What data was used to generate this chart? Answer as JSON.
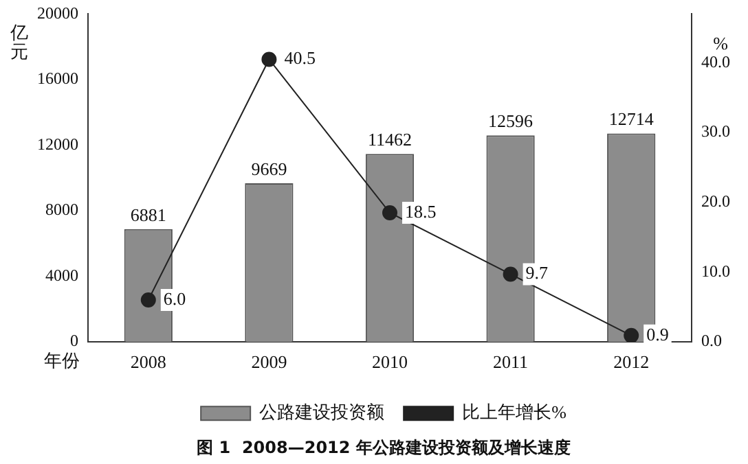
{
  "chart_data": {
    "type": "bar",
    "title": "图 1  2008—2012 年公路建设投资额及增长速度",
    "xlabel": "年份",
    "ylabel": "亿元",
    "y2label": "%",
    "categories": [
      "2008",
      "2009",
      "2010",
      "2011",
      "2012"
    ],
    "series": [
      {
        "name": "公路建设投资额",
        "color": "#8c8c8c",
        "values": [
          6881,
          9669,
          11462,
          12596,
          12714
        ]
      },
      {
        "name": "比上年增长%",
        "type": "line",
        "axis": "y2",
        "color": "#222222",
        "values": [
          6.0,
          40.5,
          18.5,
          9.7,
          0.9
        ],
        "value_labels": [
          "6.0",
          "40.5",
          "18.5",
          "9.7",
          "0.9"
        ]
      }
    ],
    "ylim": [
      0,
      20000
    ],
    "yticks": [
      0,
      4000,
      8000,
      12000,
      16000,
      20000
    ],
    "y2lim": [
      0,
      47
    ],
    "y2ticks": [
      {
        "value": 0,
        "label": "0.0"
      },
      {
        "value": 10,
        "label": "10.0"
      },
      {
        "value": 20,
        "label": "20.0"
      },
      {
        "value": 30,
        "label": "30.0"
      },
      {
        "value": 40,
        "label": "40.0"
      }
    ],
    "data_labels": true,
    "legend": "bottom",
    "marker": "circle",
    "grid": false
  }
}
